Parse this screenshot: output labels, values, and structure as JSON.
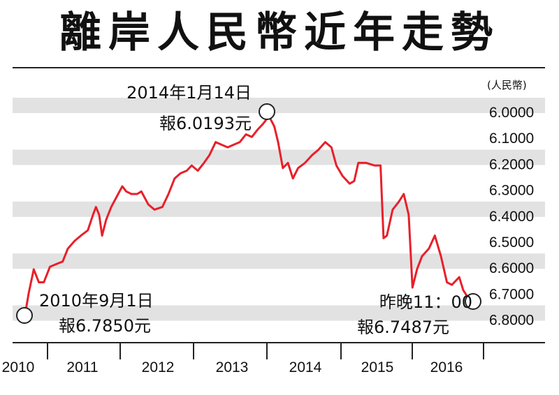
{
  "title": "離岸人民幣近年走勢",
  "chart_data": {
    "type": "line",
    "unit": "(人民幣)",
    "y_ticks": [
      "6.0000",
      "6.1000",
      "6.2000",
      "6.3000",
      "6.4000",
      "6.5000",
      "6.6000",
      "6.7000",
      "6.8000"
    ],
    "ylim": [
      6.0,
      6.8
    ],
    "y_inverted": true,
    "grid": "alternating horizontal bands",
    "x_labels": [
      "2010",
      "2011",
      "2012",
      "2013",
      "2014",
      "2015",
      "2016"
    ],
    "series": [
      {
        "color": "#e8202a",
        "points": [
          [
            "2010-09-01",
            6.785
          ],
          [
            "2010-09-20",
            6.7
          ],
          [
            "2010-10-15",
            6.61
          ],
          [
            "2010-11-10",
            6.66
          ],
          [
            "2010-12-05",
            6.66
          ],
          [
            "2011-01-05",
            6.6
          ],
          [
            "2011-02-05",
            6.59
          ],
          [
            "2011-03-10",
            6.58
          ],
          [
            "2011-04-05",
            6.53
          ],
          [
            "2011-05-10",
            6.5
          ],
          [
            "2011-06-10",
            6.48
          ],
          [
            "2011-07-15",
            6.46
          ],
          [
            "2011-08-10",
            6.4
          ],
          [
            "2011-08-25",
            6.37
          ],
          [
            "2011-09-10",
            6.4
          ],
          [
            "2011-09-25",
            6.48
          ],
          [
            "2011-10-15",
            6.42
          ],
          [
            "2011-11-10",
            6.37
          ],
          [
            "2011-12-15",
            6.32
          ],
          [
            "2012-01-05",
            6.29
          ],
          [
            "2012-01-25",
            6.31
          ],
          [
            "2012-02-20",
            6.32
          ],
          [
            "2012-03-20",
            6.32
          ],
          [
            "2012-04-10",
            6.31
          ],
          [
            "2012-05-15",
            6.36
          ],
          [
            "2012-06-15",
            6.38
          ],
          [
            "2012-07-25",
            6.37
          ],
          [
            "2012-08-25",
            6.32
          ],
          [
            "2012-09-25",
            6.26
          ],
          [
            "2012-10-25",
            6.24
          ],
          [
            "2012-11-25",
            6.23
          ],
          [
            "2012-12-20",
            6.21
          ],
          [
            "2013-01-20",
            6.23
          ],
          [
            "2013-02-20",
            6.2
          ],
          [
            "2013-03-20",
            6.17
          ],
          [
            "2013-04-20",
            6.12
          ],
          [
            "2013-05-20",
            6.13
          ],
          [
            "2013-06-20",
            6.14
          ],
          [
            "2013-07-20",
            6.13
          ],
          [
            "2013-08-20",
            6.12
          ],
          [
            "2013-09-20",
            6.09
          ],
          [
            "2013-10-20",
            6.1
          ],
          [
            "2013-11-20",
            6.07
          ],
          [
            "2013-12-15",
            6.05
          ],
          [
            "2014-01-14",
            6.0193
          ],
          [
            "2014-02-10",
            6.06
          ],
          [
            "2014-03-01",
            6.12
          ],
          [
            "2014-03-25",
            6.22
          ],
          [
            "2014-04-20",
            6.2
          ],
          [
            "2014-05-15",
            6.26
          ],
          [
            "2014-06-10",
            6.22
          ],
          [
            "2014-07-15",
            6.2
          ],
          [
            "2014-08-20",
            6.17
          ],
          [
            "2014-09-20",
            6.15
          ],
          [
            "2014-10-25",
            6.12
          ],
          [
            "2014-11-25",
            6.14
          ],
          [
            "2014-12-20",
            6.21
          ],
          [
            "2015-01-20",
            6.25
          ],
          [
            "2015-02-25",
            6.28
          ],
          [
            "2015-03-20",
            6.27
          ],
          [
            "2015-04-10",
            6.2
          ],
          [
            "2015-05-20",
            6.2
          ],
          [
            "2015-06-30",
            6.21
          ],
          [
            "2015-07-31",
            6.21
          ],
          [
            "2015-08-15",
            6.49
          ],
          [
            "2015-09-01",
            6.48
          ],
          [
            "2015-09-30",
            6.38
          ],
          [
            "2015-10-31",
            6.35
          ],
          [
            "2015-11-25",
            6.32
          ],
          [
            "2015-12-20",
            6.4
          ],
          [
            "2016-01-08",
            6.68
          ],
          [
            "2016-01-31",
            6.61
          ],
          [
            "2016-02-25",
            6.56
          ],
          [
            "2016-03-31",
            6.53
          ],
          [
            "2016-04-30",
            6.48
          ],
          [
            "2016-05-31",
            6.56
          ],
          [
            "2016-06-30",
            6.66
          ],
          [
            "2016-07-25",
            6.67
          ],
          [
            "2016-08-31",
            6.64
          ],
          [
            "2016-09-20",
            6.69
          ],
          [
            "2016-10-15",
            6.72
          ],
          [
            "2016-10-20",
            6.7487
          ]
        ]
      }
    ],
    "annotations": [
      {
        "line1": "2014年1月14日",
        "line2": "報6.0193元"
      },
      {
        "line1": "2010年9月1日",
        "line2": "報6.7850元"
      },
      {
        "line1": "昨晚11：00",
        "line2": "報6.7487元"
      }
    ]
  }
}
